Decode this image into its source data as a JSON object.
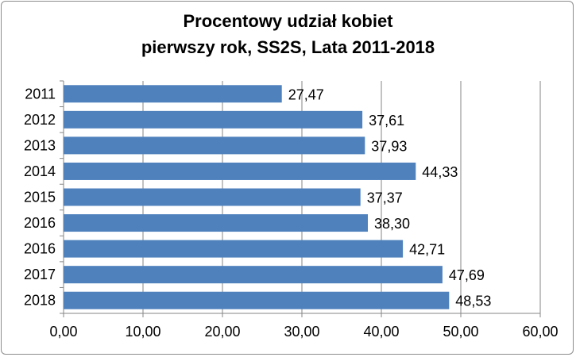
{
  "chart_data": {
    "type": "bar",
    "orientation": "horizontal",
    "title": [
      "Procentowy udział kobiet",
      "pierwszy rok, SS2S, Lata 2011-2018"
    ],
    "categories": [
      "2011",
      "2012",
      "2013",
      "2014",
      "2015",
      "2016",
      "2016",
      "2017",
      "2018"
    ],
    "values": [
      27.47,
      37.61,
      37.93,
      44.33,
      37.37,
      38.3,
      42.71,
      47.69,
      48.53
    ],
    "data_labels": [
      "27,47",
      "37,61",
      "37,93",
      "44,33",
      "37,37",
      "38,30",
      "42,71",
      "47,69",
      "48,53"
    ],
    "xlim": [
      0,
      60
    ],
    "x_ticks": [
      0,
      10,
      20,
      30,
      40,
      50,
      60
    ],
    "x_tick_labels": [
      "0,00",
      "10,00",
      "20,00",
      "30,00",
      "40,00",
      "50,00",
      "60,00"
    ],
    "grid": "vertical",
    "legend": "none",
    "bar_color": "#4f81bd",
    "grid_color": "#868686"
  }
}
